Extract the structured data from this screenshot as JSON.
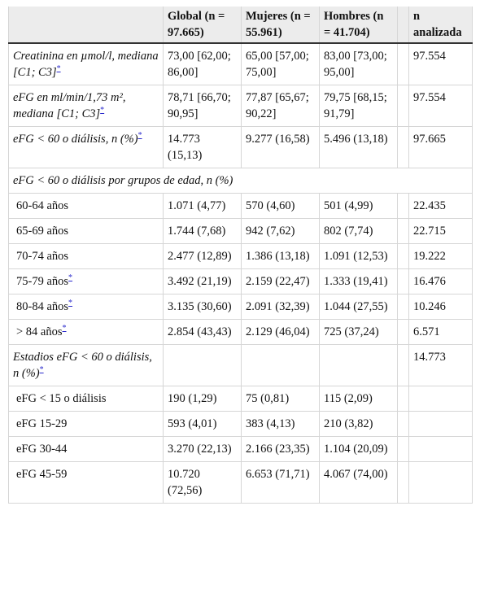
{
  "table": {
    "header": [
      "Global (n = 97.665)",
      "Mujeres (n = 55.961)",
      "Hombres (n = 41.704)",
      "n analizada"
    ],
    "rows": [
      {
        "label": "Creatinina en µmol/l, mediana [C1; C3]",
        "note": "*",
        "style": "italic",
        "values": [
          "73,00 [62,00; 86,00]",
          "65,00 [57,00; 75,00]",
          "83,00 [73,00; 95,00]",
          "97.554"
        ]
      },
      {
        "label": "eFG en ml/min/1,73 m², mediana [C1; C3]",
        "note": "*",
        "style": "italic",
        "values": [
          "78,71 [66,70; 90,95]",
          "77,87 [65,67; 90,22]",
          "79,75 [68,15; 91,79]",
          "97.554"
        ]
      },
      {
        "label": "eFG < 60 o diálisis, n (%)",
        "note": "*",
        "style": "italic",
        "values": [
          "14.773 (15,13)",
          "9.277 (16,58)",
          "5.496 (13,18)",
          "97.665"
        ]
      },
      {
        "label": "eFG < 60 o diálisis por grupos de edad, n (%)",
        "style": "section"
      },
      {
        "label": "60-64 años",
        "style": "sub",
        "values": [
          "1.071 (4,77)",
          "570 (4,60)",
          "501 (4,99)",
          "22.435"
        ]
      },
      {
        "label": "65-69 años",
        "style": "sub",
        "values": [
          "1.744 (7,68)",
          "942 (7,62)",
          "802 (7,74)",
          "22.715"
        ]
      },
      {
        "label": "70-74 años",
        "style": "sub",
        "values": [
          "2.477 (12,89)",
          "1.386 (13,18)",
          "1.091 (12,53)",
          "19.222"
        ]
      },
      {
        "label": "75-79 años",
        "note": "*",
        "style": "sub",
        "values": [
          "3.492 (21,19)",
          "2.159 (22,47)",
          "1.333 (19,41)",
          "16.476"
        ]
      },
      {
        "label": "80-84 años",
        "note": "*",
        "style": "sub",
        "values": [
          "3.135 (30,60)",
          "2.091 (32,39)",
          "1.044 (27,55)",
          "10.246"
        ]
      },
      {
        "label": "> 84 años",
        "note": "*",
        "style": "sub",
        "values": [
          "2.854 (43,43)",
          "2.129 (46,04)",
          "725 (37,24)",
          "6.571"
        ]
      },
      {
        "label": "Estadios eFG < 60 o diálisis, n (%)",
        "note": "*",
        "style": "italic",
        "values": [
          null,
          null,
          null,
          "14.773"
        ]
      },
      {
        "label": "eFG < 15 o diálisis",
        "style": "sub",
        "values": [
          "190 (1,29)",
          "75 (0,81)",
          "115 (2,09)",
          null
        ]
      },
      {
        "label": "eFG 15-29",
        "style": "sub",
        "values": [
          "593 (4,01)",
          "383 (4,13)",
          "210 (3,82)",
          null
        ]
      },
      {
        "label": "eFG 30-44",
        "style": "sub",
        "values": [
          "3.270 (22,13)",
          "2.166 (23,35)",
          "1.104 (20,09)",
          null
        ]
      },
      {
        "label": "eFG 45-59",
        "style": "sub",
        "values": [
          "10.720 (72,56)",
          "6.653 (71,71)",
          "4.067 (74,00)",
          null
        ]
      }
    ]
  }
}
